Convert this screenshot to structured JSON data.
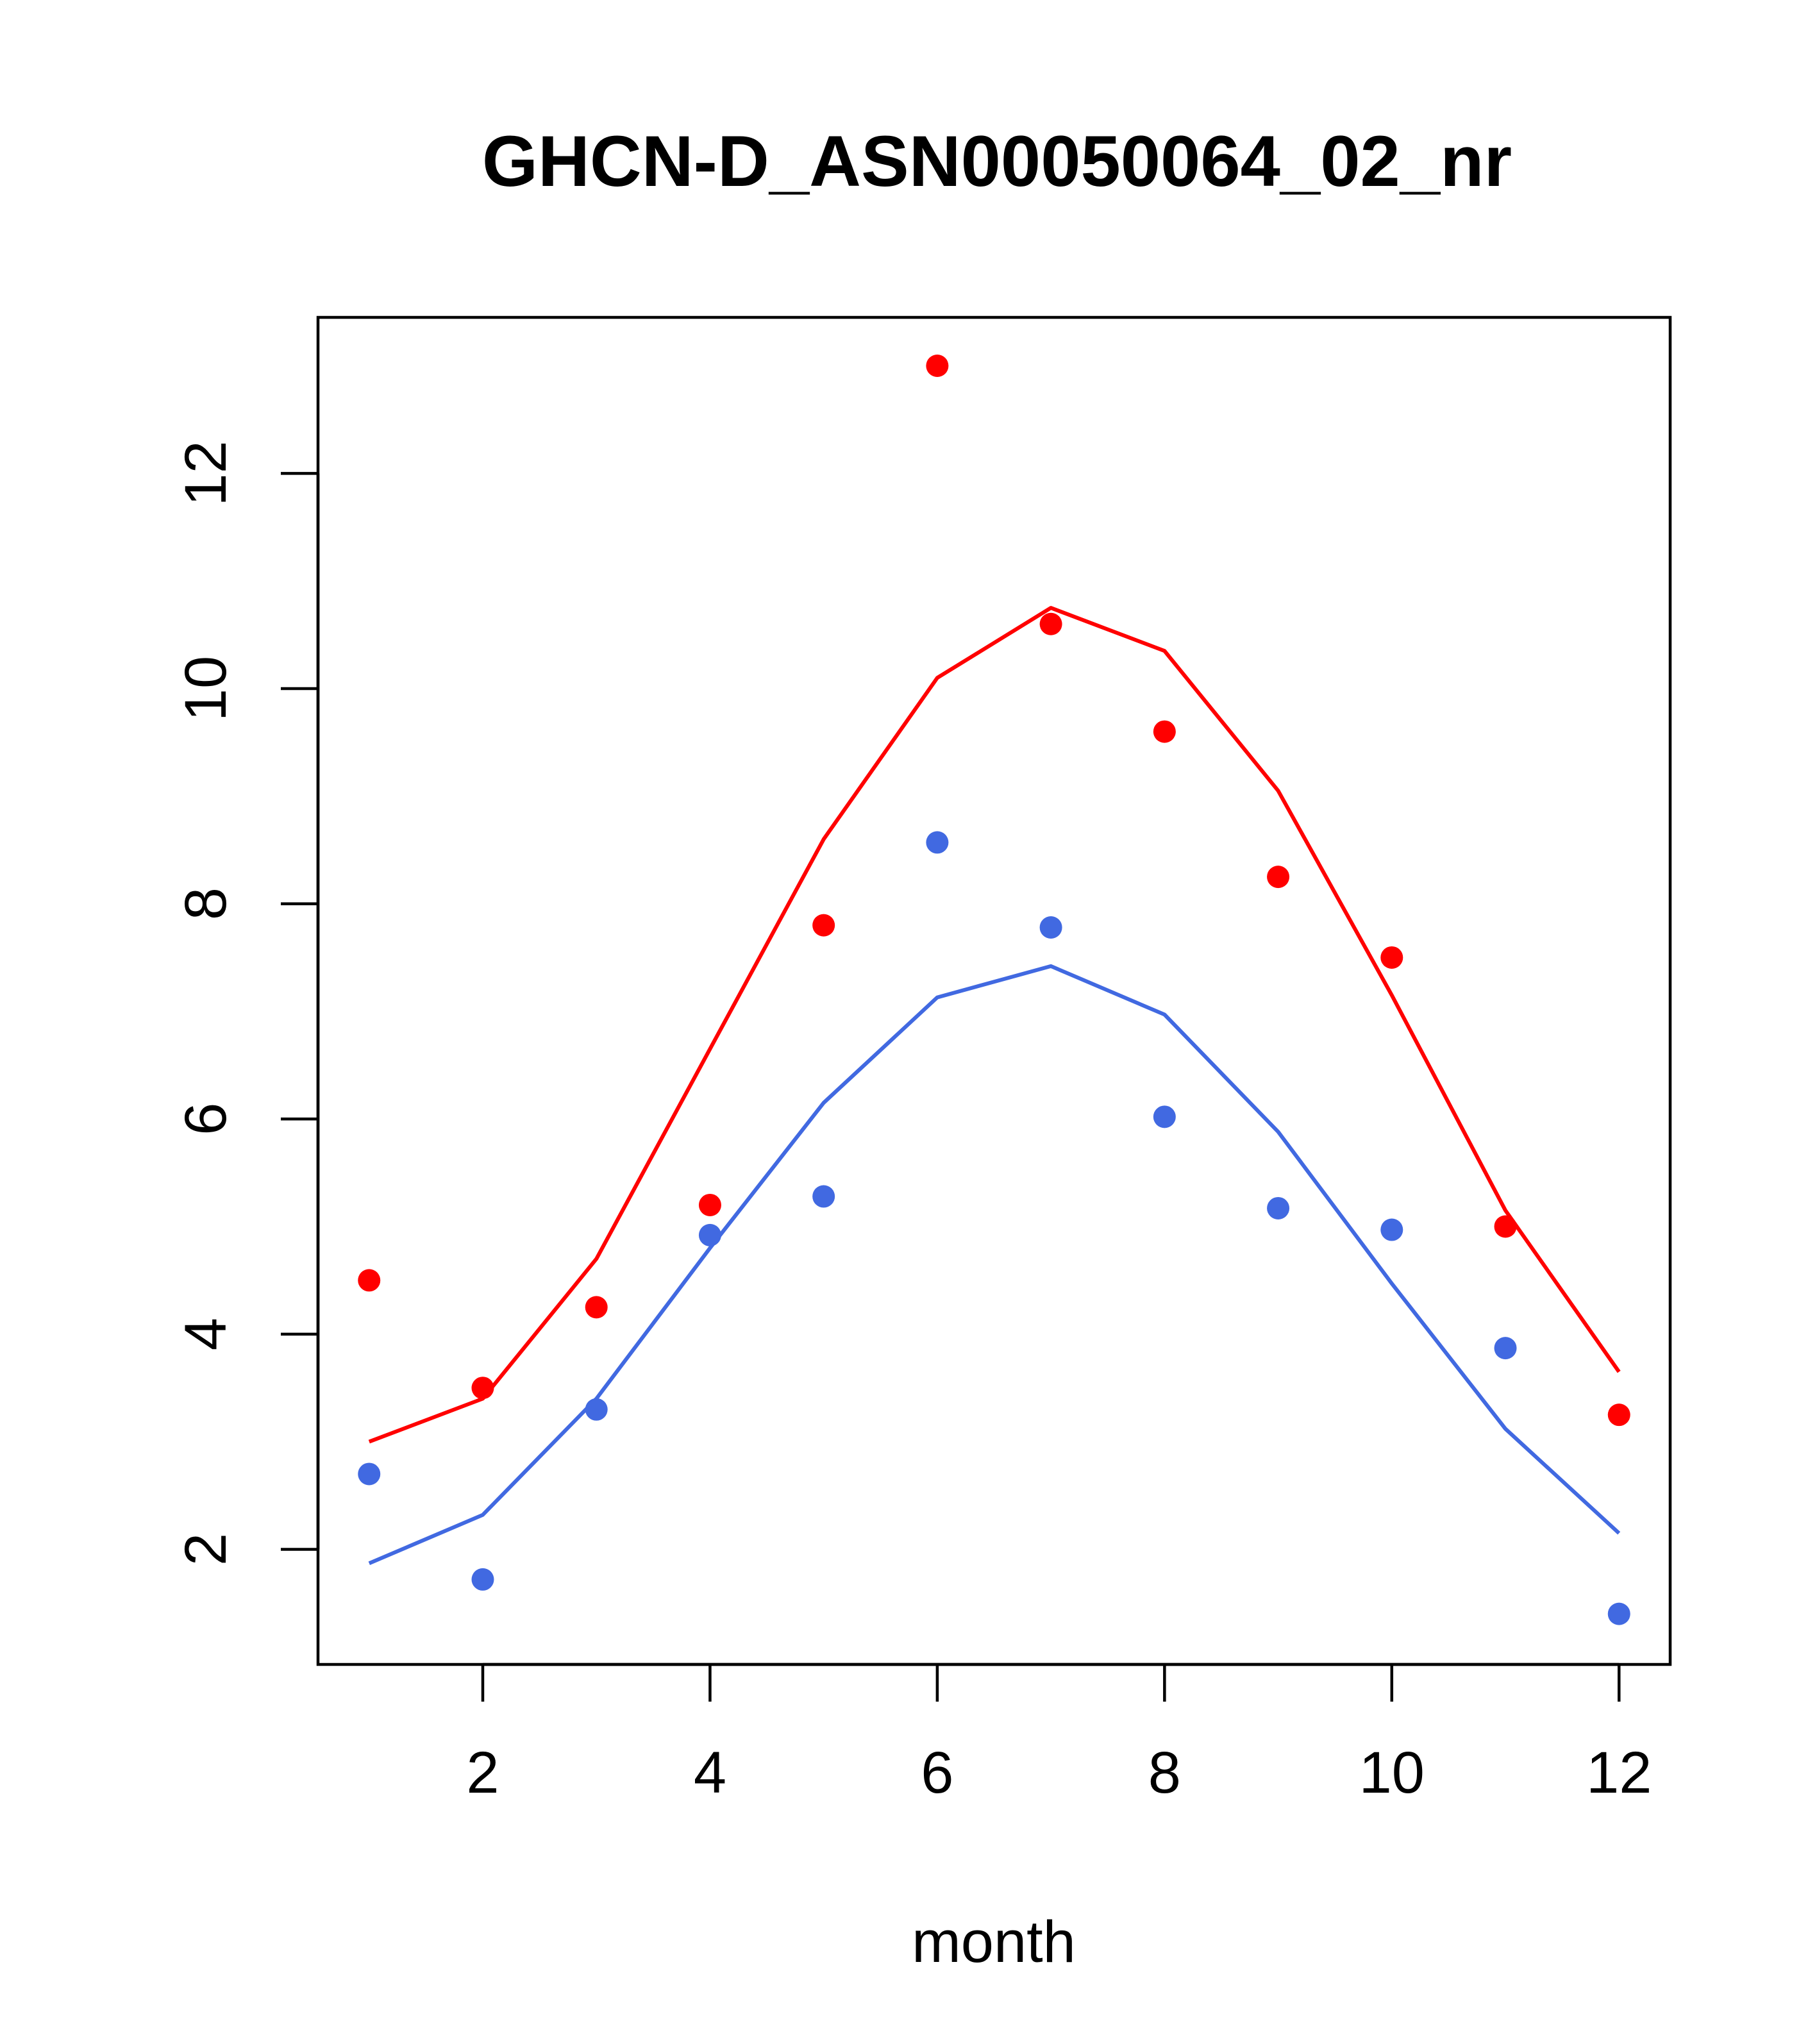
{
  "chart_data": {
    "type": "scatter",
    "title": "GHCN-D_ASN00050064_02_nr",
    "xlabel": "month",
    "ylabel": "",
    "xlim": [
      0.55,
      12.45
    ],
    "ylim": [
      0.93,
      13.45
    ],
    "x_ticks": [
      2,
      4,
      6,
      8,
      10,
      12
    ],
    "y_ticks": [
      2,
      4,
      6,
      8,
      10,
      12
    ],
    "grid": false,
    "legend": "none",
    "series": [
      {
        "color": "#ff0000",
        "points": [
          4.5,
          3.5,
          4.25,
          5.2,
          7.8,
          13.0,
          10.6,
          9.6,
          8.25,
          7.5,
          5.0,
          3.25
        ],
        "line": [
          3.0,
          3.4,
          4.7,
          6.65,
          8.6,
          10.1,
          10.75,
          10.35,
          9.05,
          7.15,
          5.15,
          3.65
        ]
      },
      {
        "color": "#4169e1",
        "points": [
          2.7,
          1.72,
          3.3,
          4.92,
          5.28,
          8.57,
          7.78,
          6.02,
          5.17,
          4.97,
          3.87,
          1.4
        ],
        "line": [
          1.87,
          2.32,
          3.4,
          4.8,
          6.15,
          7.13,
          7.42,
          6.97,
          5.88,
          4.47,
          3.12,
          2.15
        ]
      }
    ],
    "x": [
      1,
      2,
      3,
      4,
      5,
      6,
      7,
      8,
      9,
      10,
      11,
      12
    ]
  }
}
